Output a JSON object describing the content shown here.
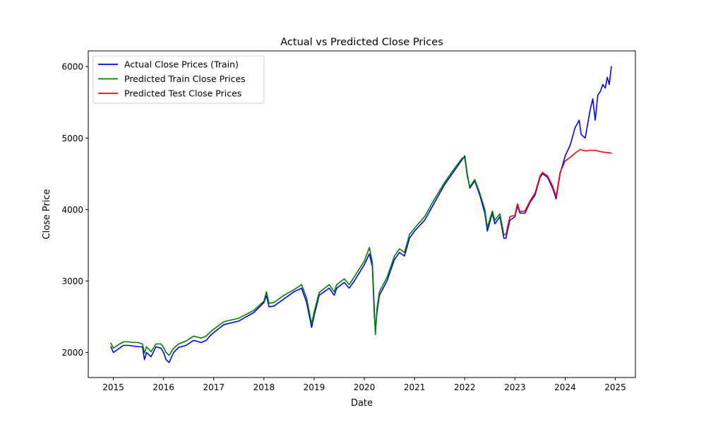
{
  "chart_data": {
    "type": "line",
    "title": "Actual vs Predicted Close Prices",
    "xlabel": "Date",
    "ylabel": "Close Price",
    "xlim": [
      2014.5,
      2025.4
    ],
    "ylim": [
      1650,
      6220
    ],
    "x_ticks": [
      2015,
      2016,
      2017,
      2018,
      2019,
      2020,
      2021,
      2022,
      2023,
      2024,
      2025
    ],
    "x_tick_labels": [
      "2015",
      "2016",
      "2017",
      "2018",
      "2019",
      "2020",
      "2021",
      "2022",
      "2023",
      "2024",
      "2025"
    ],
    "y_ticks": [
      2000,
      3000,
      4000,
      5000,
      6000
    ],
    "y_tick_labels": [
      "2000",
      "3000",
      "4000",
      "5000",
      "6000"
    ],
    "grid": false,
    "legend_position": "top-left",
    "series": [
      {
        "name": "Actual Close Prices (Train)",
        "color": "#0000ff",
        "x": [
          2014.95,
          2015.0,
          2015.1,
          2015.2,
          2015.3,
          2015.4,
          2015.5,
          2015.58,
          2015.62,
          2015.66,
          2015.75,
          2015.85,
          2015.95,
          2016.0,
          2016.05,
          2016.11,
          2016.2,
          2016.3,
          2016.45,
          2016.6,
          2016.75,
          2016.85,
          2016.95,
          2017.2,
          2017.5,
          2017.8,
          2018.0,
          2018.05,
          2018.1,
          2018.2,
          2018.4,
          2018.6,
          2018.75,
          2018.85,
          2018.95,
          2019.0,
          2019.1,
          2019.3,
          2019.4,
          2019.45,
          2019.6,
          2019.7,
          2019.8,
          2020.0,
          2020.1,
          2020.16,
          2020.2,
          2020.22,
          2020.25,
          2020.3,
          2020.45,
          2020.6,
          2020.7,
          2020.8,
          2020.9,
          2021.0,
          2021.2,
          2021.4,
          2021.6,
          2021.8,
          2021.95,
          2022.0,
          2022.05,
          2022.1,
          2022.2,
          2022.3,
          2022.4,
          2022.45,
          2022.55,
          2022.6,
          2022.7,
          2022.78,
          2022.82,
          2022.9,
          2023.0,
          2023.05,
          2023.1,
          2023.2,
          2023.3,
          2023.4,
          2023.5,
          2023.55,
          2023.65,
          2023.75,
          2023.82,
          2023.9,
          2024.0,
          2024.1,
          2024.2,
          2024.28,
          2024.32,
          2024.4,
          2024.5,
          2024.55,
          2024.6,
          2024.65,
          2024.7,
          2024.75,
          2024.8,
          2024.84,
          2024.88,
          2024.92
        ],
        "y": [
          2080,
          2000,
          2050,
          2100,
          2100,
          2090,
          2080,
          2080,
          1900,
          2000,
          1940,
          2080,
          2060,
          2000,
          1900,
          1860,
          2000,
          2070,
          2100,
          2170,
          2140,
          2170,
          2250,
          2390,
          2440,
          2560,
          2700,
          2800,
          2640,
          2650,
          2750,
          2850,
          2900,
          2700,
          2350,
          2520,
          2800,
          2900,
          2800,
          2900,
          2980,
          2900,
          3000,
          3230,
          3380,
          3200,
          2500,
          2300,
          2550,
          2800,
          3000,
          3300,
          3400,
          3350,
          3600,
          3700,
          3850,
          4100,
          4350,
          4550,
          4700,
          4750,
          4500,
          4300,
          4400,
          4200,
          3950,
          3700,
          3950,
          3800,
          3900,
          3600,
          3600,
          3850,
          3900,
          4050,
          3950,
          3950,
          4100,
          4200,
          4450,
          4500,
          4450,
          4300,
          4150,
          4500,
          4750,
          4900,
          5150,
          5250,
          5050,
          5000,
          5400,
          5550,
          5250,
          5600,
          5650,
          5750,
          5700,
          5850,
          5750,
          6000
        ]
      },
      {
        "name": "Predicted Train Close Prices",
        "color": "#008000",
        "x": [
          2014.95,
          2015.0,
          2015.1,
          2015.2,
          2015.3,
          2015.4,
          2015.5,
          2015.58,
          2015.62,
          2015.66,
          2015.75,
          2015.85,
          2015.95,
          2016.0,
          2016.05,
          2016.11,
          2016.2,
          2016.3,
          2016.45,
          2016.6,
          2016.75,
          2016.85,
          2016.95,
          2017.2,
          2017.5,
          2017.8,
          2018.0,
          2018.05,
          2018.1,
          2018.2,
          2018.4,
          2018.6,
          2018.75,
          2018.85,
          2018.95,
          2019.0,
          2019.1,
          2019.3,
          2019.4,
          2019.45,
          2019.6,
          2019.7,
          2019.8,
          2020.0,
          2020.1,
          2020.16,
          2020.2,
          2020.22,
          2020.25,
          2020.3,
          2020.45,
          2020.6,
          2020.7,
          2020.8,
          2020.9,
          2021.0,
          2021.2,
          2021.4,
          2021.6,
          2021.8,
          2021.95,
          2022.0,
          2022.05,
          2022.1,
          2022.2,
          2022.3,
          2022.4,
          2022.45,
          2022.55,
          2022.6,
          2022.7,
          2022.78,
          2022.82
        ],
        "y": [
          2130,
          2060,
          2110,
          2150,
          2150,
          2140,
          2140,
          2120,
          1990,
          2080,
          2010,
          2120,
          2120,
          2070,
          2000,
          1960,
          2060,
          2120,
          2160,
          2230,
          2200,
          2230,
          2300,
          2430,
          2480,
          2590,
          2720,
          2850,
          2690,
          2700,
          2800,
          2880,
          2950,
          2760,
          2400,
          2570,
          2840,
          2950,
          2850,
          2950,
          3030,
          2950,
          3060,
          3280,
          3470,
          3260,
          2600,
          2250,
          2600,
          2850,
          3050,
          3350,
          3450,
          3400,
          3650,
          3740,
          3900,
          4150,
          4380,
          4580,
          4720,
          4720,
          4470,
          4320,
          4420,
          4230,
          4000,
          3750,
          3980,
          3850,
          3940,
          3650,
          3650
        ]
      },
      {
        "name": "Predicted Test Close Prices",
        "color": "#ff0000",
        "x": [
          2022.82,
          2022.9,
          2023.0,
          2023.05,
          2023.1,
          2023.2,
          2023.3,
          2023.4,
          2023.5,
          2023.55,
          2023.65,
          2023.75,
          2023.82,
          2023.9,
          2024.0,
          2024.1,
          2024.2,
          2024.3,
          2024.4,
          2024.5,
          2024.6,
          2024.7,
          2024.8,
          2024.92
        ],
        "y": [
          3650,
          3900,
          3920,
          4080,
          3970,
          3980,
          4120,
          4230,
          4470,
          4520,
          4470,
          4330,
          4180,
          4520,
          4680,
          4730,
          4790,
          4840,
          4820,
          4830,
          4830,
          4810,
          4800,
          4790
        ]
      }
    ]
  }
}
